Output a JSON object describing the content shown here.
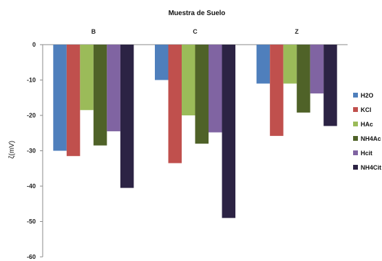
{
  "chart_data": {
    "type": "bar",
    "title": "Muestra de Suelo",
    "ylabel": "ζ(mV)",
    "xlabel": "",
    "categories": [
      "B",
      "C",
      "Z"
    ],
    "ylim": [
      -60,
      0
    ],
    "yticks": [
      0,
      -10,
      -20,
      -30,
      -40,
      -50,
      -60
    ],
    "grid": false,
    "legend_position": "right",
    "series": [
      {
        "name": "H2O",
        "color": "#4f7fbc",
        "values": [
          -30.0,
          -10.0,
          -11.0
        ]
      },
      {
        "name": "KCl",
        "color": "#c0504d",
        "values": [
          -31.5,
          -33.5,
          -25.8
        ]
      },
      {
        "name": "HAc",
        "color": "#9bbb59",
        "values": [
          -18.5,
          -20.0,
          -11.0
        ]
      },
      {
        "name": "NH4Ac",
        "color": "#4f6228",
        "values": [
          -28.5,
          -28.0,
          -19.2
        ]
      },
      {
        "name": "Hcit",
        "color": "#8064a2",
        "values": [
          -24.5,
          -24.8,
          -13.8
        ]
      },
      {
        "name": "NH4Cit",
        "color": "#2c2344",
        "values": [
          -40.5,
          -49.0,
          -23.0
        ]
      }
    ]
  }
}
